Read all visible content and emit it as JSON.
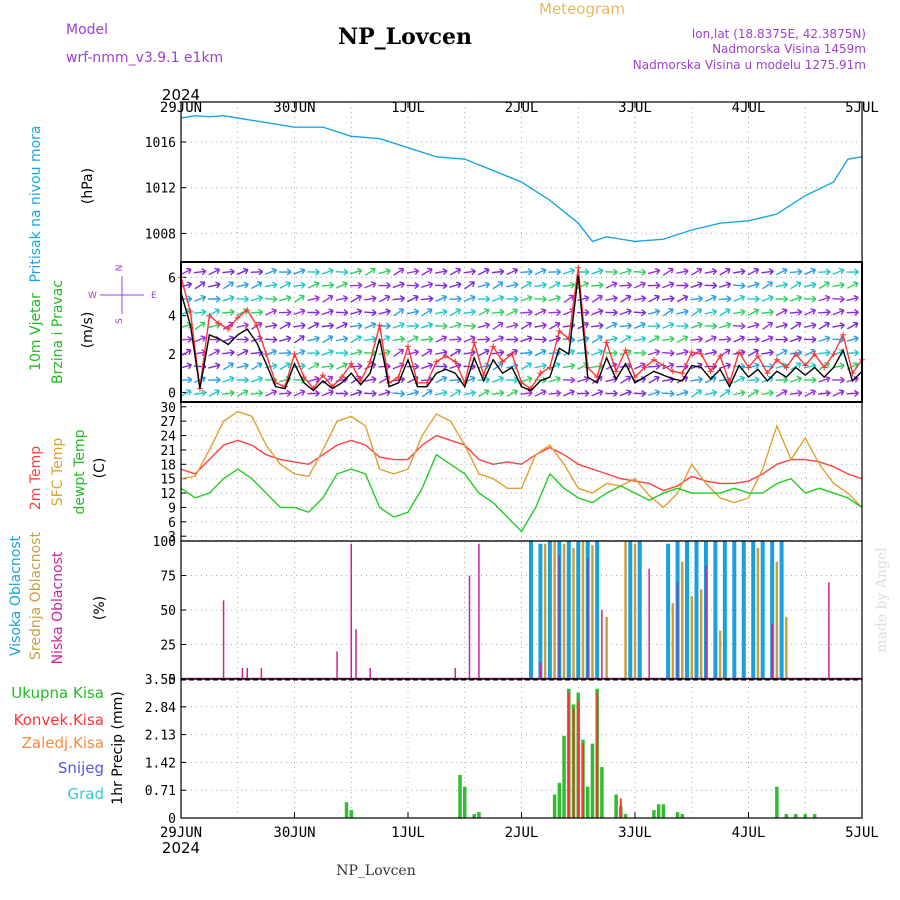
{
  "header": {
    "model_label": "Model",
    "model_name": "wrf-nmm_v3.9.1  e1km",
    "station": "NP_Lovcen",
    "meteogram_label": "Meteogram",
    "lonlat": "lon,lat (18.8375E, 42.3875N)",
    "altitude": "Nadmorska Visina 1459m",
    "model_altitude": "Nadmorska Visina u modelu 1275.91m",
    "year": "2024",
    "footer_station": "NP_Lovcen",
    "credit": "made by Angel"
  },
  "colors": {
    "pressure": "#1aa6e6",
    "wind_speed": "#000000",
    "wind_gust": "#ff3333",
    "temp2m": "#ff4040",
    "sfc_temp": "#e0a030",
    "dewpoint": "#22cc22",
    "cloud_high": "#1aa0e0",
    "cloud_mid": "#c8a040",
    "cloud_low": "#cc2299",
    "precip_total": "#33bb33",
    "precip_conv": "#ff3333",
    "precip_strat": "#ff8833",
    "snow": "#5555dd",
    "hail": "#33cccc",
    "purple_text": "#a040d0",
    "gold_text": "#e8b860"
  },
  "time_axis": {
    "labels": [
      "29JUN",
      "30JUN",
      "1JUL",
      "2JUL",
      "3JUL",
      "4JUL",
      "5JUL"
    ],
    "start_hour": 0,
    "end_hour": 144,
    "bottom_year": "2024"
  },
  "panels": {
    "pressure": {
      "ylabel1": "Pritisak na nivou mora",
      "ylabel2": "(hPa)",
      "ticks": [
        "1008",
        "1012",
        "1016"
      ]
    },
    "wind": {
      "ylabel1": "10m Vjetar",
      "ylabel2": "Brzina i Pravac",
      "unit": "(m/s)",
      "ticks": [
        "0",
        "2",
        "4",
        "6"
      ],
      "compass_n": "N",
      "compass_w": "W",
      "compass_e": "E",
      "compass_s": "S"
    },
    "temperature": {
      "label1": "2m Temp",
      "label2": "SFC Temp",
      "label3": "dewpt Temp",
      "unit": "(C)",
      "ticks": [
        "3",
        "6",
        "9",
        "12",
        "15",
        "18",
        "21",
        "24",
        "27",
        "30"
      ]
    },
    "cloud": {
      "label1": "Visoka Oblacnost",
      "label2": "Srednja Oblacnost",
      "label3": "Niska Oblacnost",
      "unit": "(%)",
      "ticks": [
        "0",
        "25",
        "50",
        "75",
        "100"
      ]
    },
    "precip": {
      "legend1": "Ukupna Kisa",
      "legend2": "Konvek.Kisa",
      "legend3": "Zaledj.Kisa",
      "legend4": "Snijeg",
      "legend5": "Grad",
      "ylabel": "1hr Precip (mm)",
      "ticks": [
        "0",
        "0.71",
        "1.42",
        "2.13",
        "2.84",
        "3.55"
      ]
    }
  },
  "chart_data": [
    {
      "type": "line",
      "title": "Pritisak na nivou mora",
      "ylabel": "(hPa)",
      "ylim": [
        1005.5,
        1019.5
      ],
      "x": [
        0,
        3,
        6,
        9,
        12,
        18,
        24,
        30,
        36,
        42,
        48,
        54,
        60,
        66,
        72,
        78,
        84,
        87,
        90,
        96,
        102,
        108,
        114,
        120,
        126,
        132,
        138,
        141,
        144
      ],
      "series": [
        {
          "values": [
            1018.1,
            1018.3,
            1018.2,
            1018.3,
            1018.1,
            1017.7,
            1017.3,
            1017.3,
            1016.5,
            1016.3,
            1015.5,
            1014.7,
            1014.5,
            1013.5,
            1012.5,
            1010.9,
            1008.9,
            1007.3,
            1007.7,
            1007.3,
            1007.5,
            1008.3,
            1008.9,
            1009.1,
            1009.7,
            1011.3,
            1012.5,
            1014.5,
            1014.7
          ]
        }
      ]
    },
    {
      "type": "line",
      "title": "10m Vjetar Brzina i Pravac",
      "ylabel": "(m/s)",
      "ylim": [
        -0.5,
        6.8
      ],
      "x": [
        0,
        2,
        4,
        6,
        8,
        10,
        12,
        14,
        16,
        18,
        20,
        22,
        24,
        26,
        28,
        30,
        32,
        34,
        36,
        38,
        40,
        42,
        44,
        46,
        48,
        50,
        52,
        54,
        56,
        58,
        60,
        62,
        64,
        66,
        68,
        70,
        72,
        74,
        76,
        78,
        80,
        82,
        84,
        86,
        88,
        90,
        92,
        94,
        96,
        98,
        100,
        102,
        104,
        106,
        108,
        110,
        112,
        114,
        116,
        118,
        120,
        122,
        124,
        126,
        128,
        130,
        132,
        134,
        136,
        138,
        140,
        142,
        144
      ],
      "series": [
        {
          "values": [
            5.2,
            3.5,
            0.2,
            3.0,
            2.8,
            2.5,
            3.0,
            3.3,
            2.6,
            1.5,
            0.3,
            0.2,
            1.5,
            0.5,
            0.1,
            0.6,
            0.2,
            0.5,
            1.0,
            0.4,
            1.0,
            2.8,
            0.3,
            0.5,
            1.7,
            0.3,
            0.3,
            1.0,
            1.2,
            1.0,
            0.3,
            1.8,
            0.6,
            1.7,
            1.0,
            1.3,
            0.3,
            0.1,
            0.6,
            0.8,
            2.3,
            2.0,
            6.1,
            0.8,
            0.5,
            1.8,
            0.7,
            1.5,
            0.5,
            0.8,
            1.1,
            0.9,
            0.7,
            0.6,
            1.4,
            1.3,
            0.7,
            1.2,
            0.3,
            1.4,
            0.8,
            1.2,
            0.6,
            1.1,
            0.8,
            1.3,
            0.9,
            1.3,
            0.8,
            1.3,
            2.2,
            0.6,
            1.1
          ]
        },
        {
          "values": [
            6.0,
            4.2,
            0.2,
            4.0,
            3.6,
            3.3,
            3.9,
            4.3,
            3.5,
            2.0,
            0.5,
            0.3,
            2.0,
            0.8,
            0.2,
            0.9,
            0.3,
            0.8,
            1.5,
            0.6,
            1.6,
            3.5,
            0.5,
            0.8,
            2.4,
            0.5,
            0.5,
            1.6,
            1.9,
            1.6,
            0.5,
            2.6,
            0.9,
            2.4,
            1.6,
            2.0,
            0.5,
            0.2,
            1.0,
            1.3,
            3.2,
            2.8,
            6.5,
            1.3,
            0.8,
            2.6,
            1.1,
            2.2,
            0.8,
            1.3,
            1.7,
            1.4,
            1.1,
            1.0,
            2.1,
            2.0,
            1.1,
            1.9,
            0.5,
            2.1,
            1.3,
            1.9,
            1.0,
            1.7,
            1.3,
            2.0,
            1.4,
            2.0,
            1.3,
            2.0,
            3.0,
            1.0,
            1.7
          ]
        }
      ]
    },
    {
      "type": "line",
      "title": "Temperature",
      "ylabel": "(C)",
      "ylim": [
        2,
        31
      ],
      "x": [
        0,
        3,
        6,
        9,
        12,
        15,
        18,
        21,
        24,
        27,
        30,
        33,
        36,
        39,
        42,
        45,
        48,
        51,
        54,
        57,
        60,
        63,
        66,
        69,
        72,
        75,
        78,
        81,
        84,
        87,
        90,
        93,
        96,
        99,
        102,
        105,
        108,
        111,
        114,
        117,
        120,
        123,
        126,
        129,
        132,
        135,
        138,
        141,
        144
      ],
      "series": [
        {
          "name": "2m Temp",
          "values": [
            17,
            16,
            19,
            22,
            23,
            22,
            20,
            19,
            18.5,
            18,
            20,
            22,
            23,
            22,
            19.5,
            19,
            19,
            22,
            24,
            23,
            22,
            19,
            18,
            18.5,
            18,
            20,
            21.5,
            20,
            18,
            17,
            16,
            15,
            14.5,
            14,
            12.5,
            13.5,
            15.5,
            14.5,
            14,
            14,
            14.5,
            16,
            18,
            19,
            19,
            18.5,
            17.5,
            16,
            15
          ]
        },
        {
          "name": "SFC Temp",
          "values": [
            15,
            15.5,
            21,
            27,
            29,
            28,
            22,
            18,
            16,
            15.5,
            21,
            27,
            28,
            26,
            17,
            16,
            17,
            24,
            28.5,
            27,
            22,
            16,
            15,
            13,
            13,
            20,
            22,
            18,
            13,
            12,
            14,
            13.5,
            15,
            11.5,
            9,
            12,
            18,
            14,
            11,
            10,
            11,
            17,
            26,
            19,
            23.5,
            18,
            14,
            12,
            9
          ]
        },
        {
          "name": "dewpt Temp",
          "values": [
            13,
            11,
            12,
            15,
            17,
            15,
            12,
            9,
            9,
            8,
            11,
            16,
            17,
            16,
            9,
            7,
            8,
            13,
            20,
            18,
            16,
            12,
            10,
            7,
            4,
            9,
            16,
            13,
            11,
            10,
            12,
            13.5,
            12,
            10.5,
            12,
            13,
            12,
            12,
            12,
            13,
            12,
            12,
            14,
            15,
            12,
            13,
            12,
            11,
            9
          ]
        }
      ]
    },
    {
      "type": "bar",
      "title": "Oblacnost",
      "ylabel": "(%)",
      "ylim": [
        0,
        100
      ],
      "series": [
        {
          "name": "Visoka Oblacnost",
          "x": [
            74,
            76,
            78,
            80,
            82,
            84,
            86,
            88,
            95,
            97,
            103,
            105,
            107,
            109,
            111,
            113,
            115,
            117,
            119,
            121,
            123,
            125,
            127
          ],
          "values": [
            100,
            98,
            100,
            100,
            100,
            100,
            100,
            100,
            100,
            100,
            98,
            100,
            100,
            100,
            100,
            100,
            100,
            100,
            100,
            100,
            100,
            100,
            100
          ]
        },
        {
          "name": "Srednja Oblacnost",
          "x": [
            77,
            79,
            81,
            83,
            85,
            87,
            90,
            94,
            96,
            104,
            106,
            108,
            110,
            114,
            122,
            126,
            128
          ],
          "values": [
            98,
            100,
            98,
            95,
            100,
            97,
            45,
            100,
            98,
            55,
            85,
            60,
            65,
            35,
            95,
            85,
            45
          ]
        },
        {
          "name": "Niska Oblacnost",
          "x": [
            9,
            13,
            14,
            17,
            33,
            36,
            37,
            40,
            58,
            61,
            63,
            76,
            80,
            86,
            89,
            99,
            105,
            111,
            125,
            137
          ],
          "values": [
            57,
            8,
            8,
            8,
            20,
            98,
            36,
            8,
            8,
            75,
            98,
            12,
            90,
            88,
            50,
            80,
            70,
            82,
            40,
            70
          ]
        }
      ]
    },
    {
      "type": "bar",
      "title": "1hr Precip",
      "ylabel": "1hr Precip (mm)",
      "ylim": [
        0,
        3.55
      ],
      "series": [
        {
          "name": "Ukupna Kisa",
          "x": [
            35,
            36,
            59,
            60,
            62,
            63,
            79,
            80,
            81,
            82,
            83,
            84,
            85,
            86,
            87,
            88,
            89,
            92,
            93,
            94,
            100,
            101,
            102,
            105,
            106,
            126,
            128,
            130,
            132,
            134
          ],
          "values": [
            0.4,
            0.2,
            1.1,
            0.8,
            0.1,
            0.15,
            0.6,
            0.9,
            2.1,
            3.3,
            2.9,
            3.2,
            2.0,
            0.8,
            1.9,
            3.3,
            1.3,
            0.6,
            0.3,
            0.1,
            0.2,
            0.35,
            0.35,
            0.15,
            0.1,
            0.8,
            0.1,
            0.1,
            0.1,
            0.1
          ]
        },
        {
          "name": "Konvek.Kisa",
          "x": [
            82,
            83,
            84,
            85,
            88,
            93
          ],
          "values": [
            3.2,
            2.8,
            3.0,
            1.9,
            3.2,
            0.5
          ]
        }
      ]
    }
  ]
}
